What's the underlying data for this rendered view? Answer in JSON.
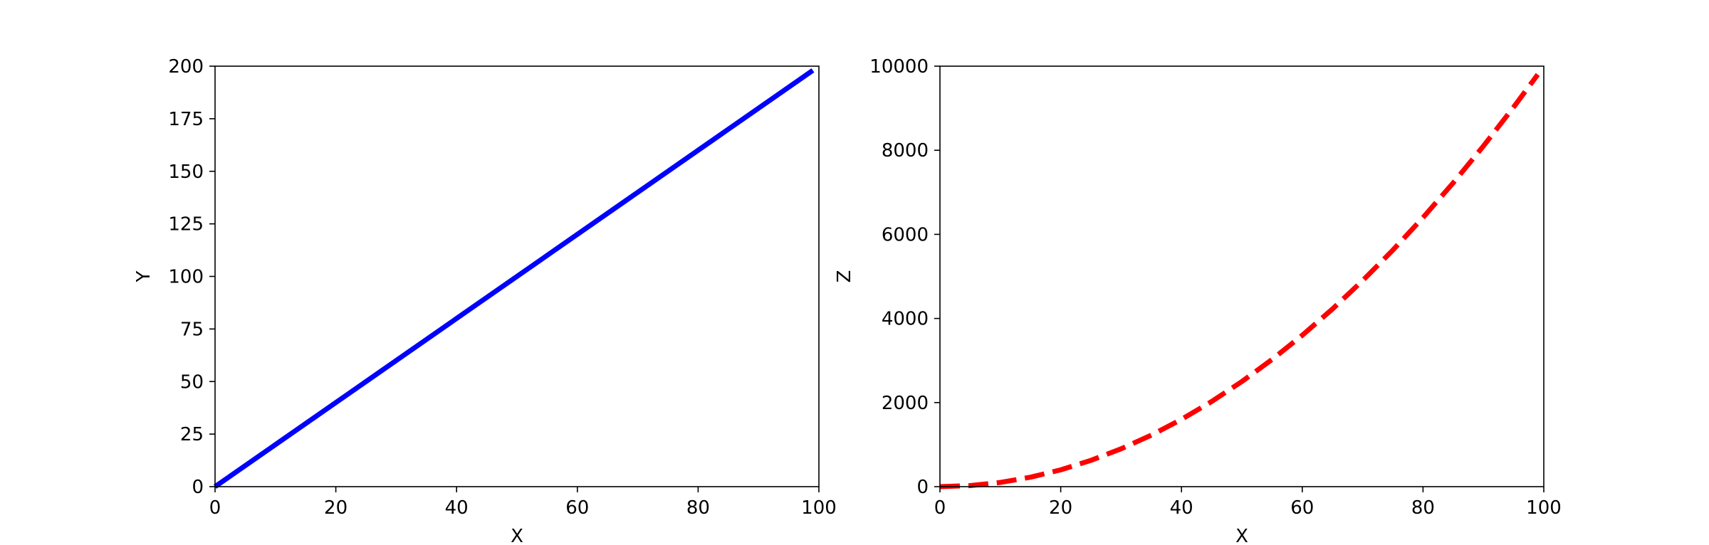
{
  "chart_data": [
    {
      "type": "line",
      "xlabel": "X",
      "ylabel": "Y",
      "xlim": [
        0,
        100
      ],
      "ylim": [
        0,
        200
      ],
      "xticks": [
        0,
        20,
        40,
        60,
        80,
        100
      ],
      "yticks": [
        0,
        25,
        50,
        75,
        100,
        125,
        150,
        175,
        200
      ],
      "grid": false,
      "series": [
        {
          "color": "#0000ff",
          "linestyle": "solid",
          "x": [
            0,
            99
          ],
          "y": [
            0,
            198
          ]
        }
      ]
    },
    {
      "type": "line",
      "xlabel": "X",
      "ylabel": "Z",
      "xlim": [
        0,
        100
      ],
      "ylim": [
        0,
        10000
      ],
      "xticks": [
        0,
        20,
        40,
        60,
        80,
        100
      ],
      "yticks": [
        0,
        2000,
        4000,
        6000,
        8000,
        10000
      ],
      "grid": false,
      "series": [
        {
          "color": "#ff0000",
          "linestyle": "dashed",
          "x": [
            0,
            5,
            10,
            15,
            20,
            25,
            30,
            35,
            40,
            45,
            50,
            55,
            60,
            65,
            70,
            75,
            80,
            85,
            90,
            95,
            99
          ],
          "y": [
            0,
            25,
            100,
            225,
            400,
            625,
            900,
            1225,
            1600,
            2025,
            2500,
            3025,
            3600,
            4225,
            4900,
            5625,
            6400,
            7225,
            8100,
            9025,
            9801
          ]
        }
      ]
    }
  ]
}
